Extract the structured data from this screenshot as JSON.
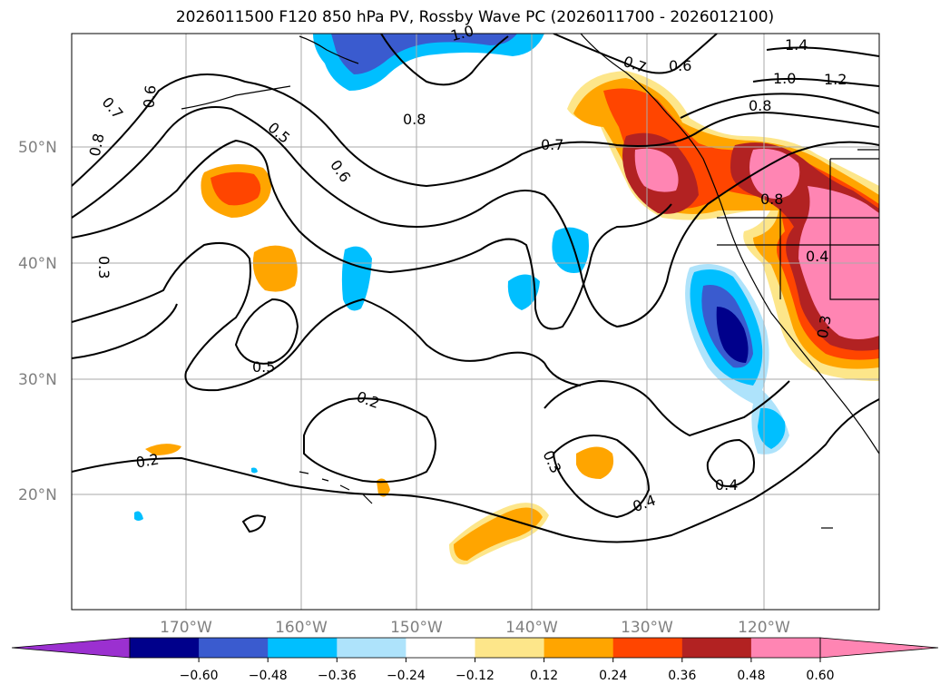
{
  "title": "2026011500 F120 850 hPa PV, Rossby Wave PC (2026011700 - 2026012100)",
  "lat_labels": [
    "50°N",
    "40°N",
    "30°N",
    "20°N"
  ],
  "lon_labels": [
    "170°W",
    "160°W",
    "150°W",
    "140°W",
    "130°W",
    "120°W"
  ],
  "contour_labels": [
    "1.4",
    "1.2",
    "1.0",
    "0.8",
    "0.8",
    "0.8",
    "0.8",
    "0.7",
    "0.7",
    "0.7",
    "0.6",
    "0.6",
    "0.6",
    "0.5",
    "0.5",
    "0.4",
    "0.4",
    "0.4",
    "0.3",
    "0.3",
    "0.3",
    "0.2",
    "0.2",
    "1.0"
  ],
  "colorbar": {
    "ticks": [
      "−0.60",
      "−0.48",
      "−0.36",
      "−0.24",
      "−0.12",
      "0.12",
      "0.24",
      "0.36",
      "0.48",
      "0.60"
    ],
    "colors": [
      "#9b30d0",
      "#00008b",
      "#3a5bcf",
      "#00bfff",
      "#aee3fb",
      "#ffffff",
      "#fde68a",
      "#ffa500",
      "#ff4500",
      "#b22222",
      "#ff85b3",
      "#ff85b3"
    ]
  }
}
